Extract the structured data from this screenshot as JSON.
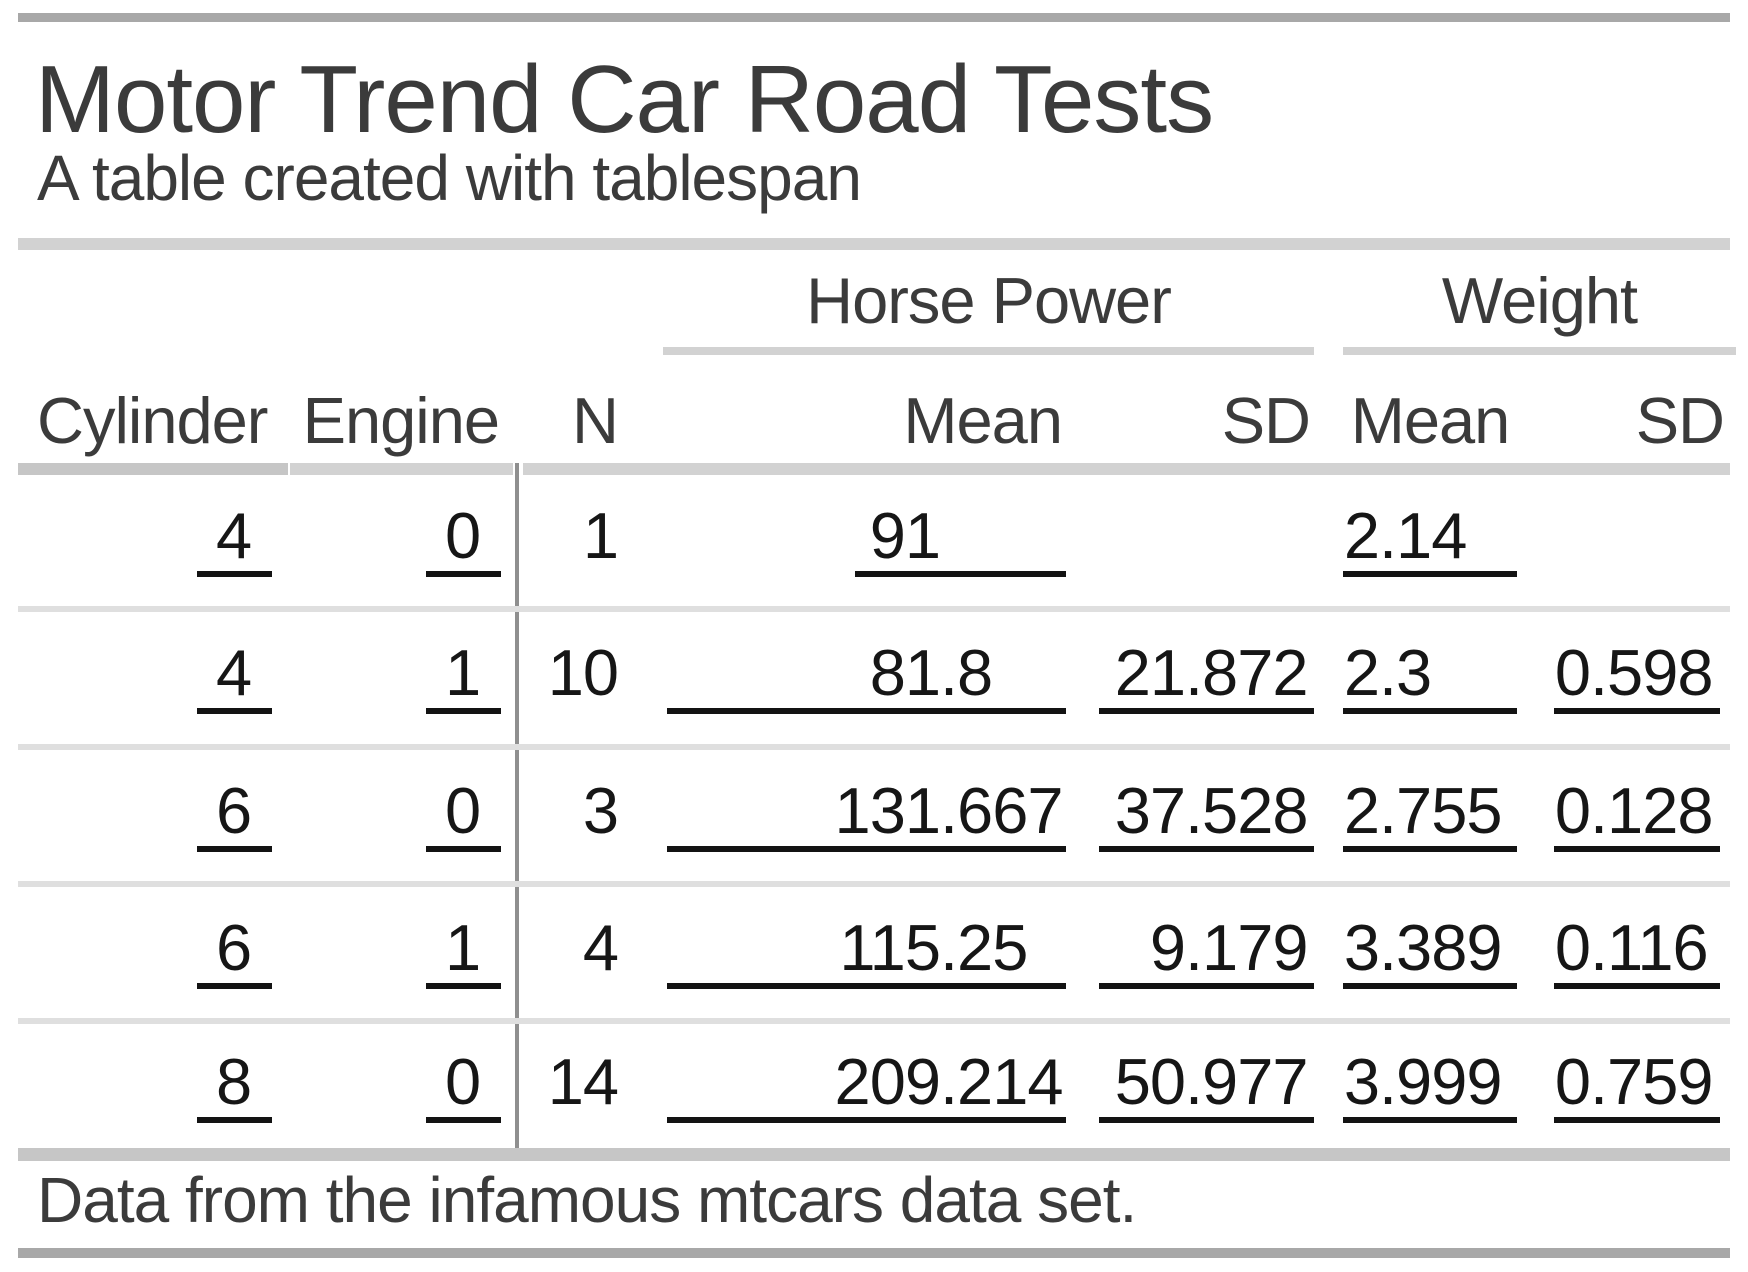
{
  "title": "Motor Trend Car Road Tests",
  "subtitle": "A table created with tablespan",
  "footer": "Data from the infamous mtcars data set.",
  "spanners": {
    "horse_power": "Horse Power",
    "weight": "Weight"
  },
  "columns": {
    "cylinder": "Cylinder",
    "engine": "Engine",
    "n": "N",
    "hp_mean": "Mean",
    "hp_sd": "SD",
    "wt_mean": "Mean",
    "wt_sd": "SD"
  },
  "rows": [
    {
      "cylinder": "4",
      "engine": "0",
      "n": "1",
      "hp_mean": "91",
      "hp_sd": "",
      "wt_mean": "2.14",
      "wt_sd": ""
    },
    {
      "cylinder": "4",
      "engine": "1",
      "n": "10",
      "hp_mean": "81.8",
      "hp_sd": "21.872",
      "wt_mean": "2.3",
      "wt_sd": "0.598"
    },
    {
      "cylinder": "6",
      "engine": "0",
      "n": "3",
      "hp_mean": "131.667",
      "hp_sd": "37.528",
      "wt_mean": "2.755",
      "wt_sd": "0.128"
    },
    {
      "cylinder": "6",
      "engine": "1",
      "n": "4",
      "hp_mean": "115.25",
      "hp_sd": "9.179",
      "wt_mean": "3.389",
      "wt_sd": "0.116"
    },
    {
      "cylinder": "8",
      "engine": "0",
      "n": "14",
      "hp_mean": "209.214",
      "hp_sd": "50.977",
      "wt_mean": "3.999",
      "wt_sd": "0.759"
    }
  ],
  "colors": {
    "text_dark": "#3b3b3b",
    "text_black": "#161616",
    "bar_dark": "#a8a8a8",
    "rule_light": "#d2d2d2",
    "rule_medium": "#c6c6c6",
    "separator": "#dfdfdf",
    "divider": "#8f8f8f",
    "underline": "#131313",
    "background": "#ffffff"
  }
}
